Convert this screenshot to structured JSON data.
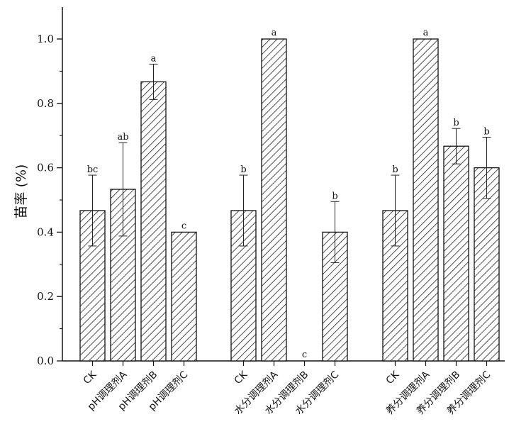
{
  "chart_data": {
    "type": "bar",
    "ylabel": "苗率 (%)",
    "xlabel": "",
    "ylim": [
      0,
      1.0
    ],
    "yticks": [
      "0.0",
      "0.2",
      "0.4",
      "0.6",
      "0.8",
      "1.0"
    ],
    "bar_pattern": "diagonal-hatch",
    "bar_color": "#222222",
    "groups": [
      {
        "bars": [
          {
            "category": "CK",
            "value": 0.467,
            "error": 0.11,
            "sig": "bc"
          },
          {
            "category": "pH调理剂A",
            "value": 0.533,
            "error": 0.145,
            "sig": "ab"
          },
          {
            "category": "pH调理剂B",
            "value": 0.867,
            "error": 0.055,
            "sig": "a"
          },
          {
            "category": "pH调理剂C",
            "value": 0.4,
            "error": 0.0,
            "sig": "c"
          }
        ]
      },
      {
        "bars": [
          {
            "category": "CK",
            "value": 0.467,
            "error": 0.11,
            "sig": "b"
          },
          {
            "category": "水分调理剂A",
            "value": 1.0,
            "error": 0.0,
            "sig": "a"
          },
          {
            "category": "水分调理剂B",
            "value": 0.0,
            "error": 0.0,
            "sig": "c"
          },
          {
            "category": "水分调理剂C",
            "value": 0.4,
            "error": 0.095,
            "sig": "b"
          }
        ]
      },
      {
        "bars": [
          {
            "category": "CK",
            "value": 0.467,
            "error": 0.11,
            "sig": "b"
          },
          {
            "category": "养分调理剂A",
            "value": 1.0,
            "error": 0.0,
            "sig": "a"
          },
          {
            "category": "养分调理剂B",
            "value": 0.667,
            "error": 0.055,
            "sig": "b"
          },
          {
            "category": "养分调理剂C",
            "value": 0.6,
            "error": 0.095,
            "sig": "b"
          }
        ]
      }
    ]
  }
}
